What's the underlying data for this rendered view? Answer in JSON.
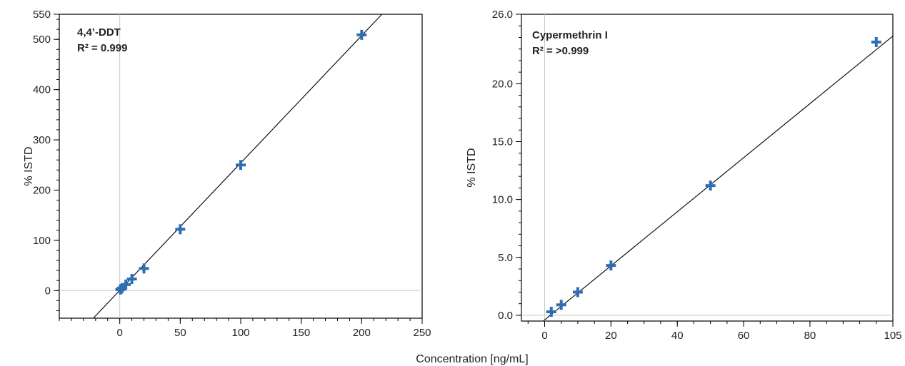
{
  "colors": {
    "marker": "#2f6db5",
    "axis": "#000000",
    "fit_line": "#111111",
    "ref_line": "#c8c8c8"
  },
  "shared_xlabel": "Concentration [ng/mL]",
  "chart_data": [
    {
      "type": "scatter",
      "title": "",
      "annotation": {
        "line1": "4,4’-DDT",
        "line2": "R² = 0.999"
      },
      "xlabel": "",
      "ylabel": "% ISTD",
      "xlim": [
        -50,
        250
      ],
      "ylim": [
        -55,
        550
      ],
      "xticks": [
        0,
        50,
        100,
        150,
        200,
        250
      ],
      "xtick_labels": [
        "0",
        "50",
        "100",
        "150",
        "200",
        "250"
      ],
      "yticks": [
        0,
        100,
        200,
        300,
        400,
        500,
        550
      ],
      "ytick_labels": [
        "0",
        "100",
        "200",
        "300",
        "400",
        "500",
        "550"
      ],
      "x_minor_step": 10,
      "y_minor_step": 20,
      "reference_lines": {
        "x": 0,
        "y": 0
      },
      "fit": {
        "slope": 2.535,
        "intercept": 0.5
      },
      "points": {
        "x": [
          0.5,
          1,
          2,
          5,
          10,
          20,
          50,
          100,
          200
        ],
        "y": [
          2,
          3,
          5,
          12,
          23,
          44,
          122,
          250,
          509
        ]
      },
      "grid": false,
      "legend": "none"
    },
    {
      "type": "scatter",
      "title": "",
      "annotation": {
        "line1": "Cypermethrin I",
        "line2": "R² = >0.999"
      },
      "xlabel": "",
      "ylabel": "% ISTD",
      "xlim": [
        -7,
        105
      ],
      "ylim": [
        -0.5,
        26
      ],
      "xticks": [
        0,
        20,
        40,
        60,
        80,
        105
      ],
      "xtick_labels": [
        "0",
        "20",
        "40",
        "60",
        "80",
        "105"
      ],
      "yticks": [
        0,
        5,
        10,
        15,
        20,
        26
      ],
      "ytick_labels": [
        "0.0",
        "5.0",
        "10.0",
        "15.0",
        "20.0",
        "26.0"
      ],
      "x_minor_step": 5,
      "y_minor_step": 1,
      "reference_lines": {
        "x": 0,
        "y": 0
      },
      "fit": {
        "slope": 0.2335,
        "intercept": -0.4
      },
      "points": {
        "x": [
          2,
          5,
          10,
          20,
          50,
          100
        ],
        "y": [
          0.3,
          0.9,
          2.0,
          4.3,
          11.2,
          23.6
        ]
      },
      "grid": false,
      "legend": "none"
    }
  ]
}
